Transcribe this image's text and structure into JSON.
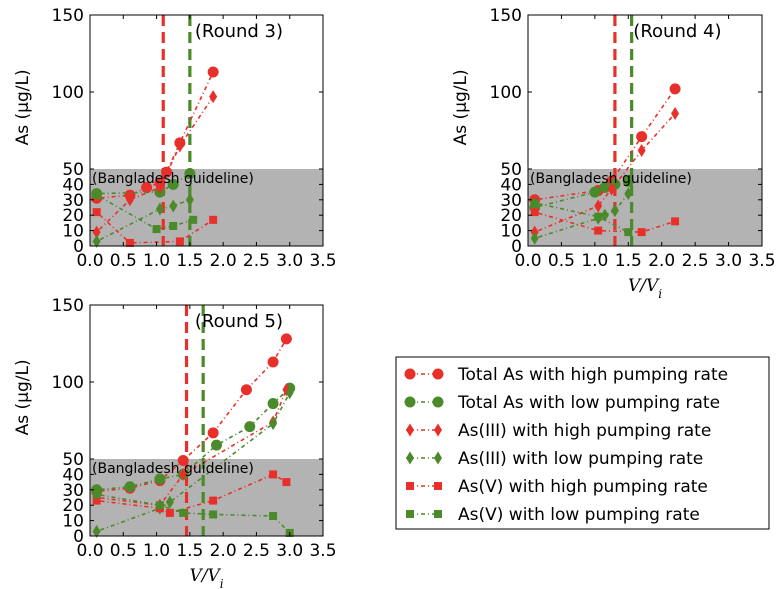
{
  "colors": {
    "red": "#e8302b",
    "green": "#4a8a2a",
    "guideline_fill": "#b3b3b3"
  },
  "guideline_label": "(Bangladesh guideline)",
  "ylabel": "As (μg/L)",
  "xlabel": "V/V",
  "xlabel_sub": "i",
  "chart_data": [
    {
      "type": "line",
      "title": "(Round 3)",
      "xlim": [
        0,
        3.5
      ],
      "ylim": [
        0,
        150
      ],
      "xticks": [
        "0.0",
        "0.5",
        "1.0",
        "1.5",
        "2.0",
        "2.5",
        "3.0",
        "3.5"
      ],
      "yticks": [
        "0",
        "10",
        "20",
        "30",
        "40",
        "50",
        "100",
        "150"
      ],
      "guideline": 50,
      "vlines": [
        {
          "x": 1.1,
          "color": "red"
        },
        {
          "x": 1.5,
          "color": "green"
        }
      ],
      "show_ylabel": true,
      "show_xlabel": false,
      "series": [
        {
          "name": "Total As with high pumping rate",
          "marker": "circle",
          "color": "red",
          "x": [
            0.1,
            0.6,
            0.85,
            1.05,
            1.15,
            1.35,
            1.85
          ],
          "y": [
            31,
            33,
            38,
            41,
            48,
            67,
            113
          ]
        },
        {
          "name": "Total As with low pumping rate",
          "marker": "circle",
          "color": "green",
          "x": [
            0.1,
            1.05,
            1.25,
            1.5
          ],
          "y": [
            34,
            35,
            40,
            47
          ]
        },
        {
          "name": "As(III) with high pumping rate",
          "marker": "diamond",
          "color": "red",
          "x": [
            0.1,
            0.6,
            1.05,
            1.35,
            1.85
          ],
          "y": [
            9,
            30,
            38,
            65,
            97
          ]
        },
        {
          "name": "As(III) with low pumping rate",
          "marker": "diamond",
          "color": "green",
          "x": [
            0.1,
            1.05,
            1.25,
            1.5
          ],
          "y": [
            3,
            24,
            26,
            30
          ]
        },
        {
          "name": "As(V) with high pumping rate",
          "marker": "square",
          "color": "red",
          "x": [
            0.1,
            0.6,
            1.35,
            1.85
          ],
          "y": [
            22,
            2,
            3,
            17
          ]
        },
        {
          "name": "As(V) with low pumping rate",
          "marker": "square",
          "color": "green",
          "x": [
            0.1,
            1.0,
            1.25,
            1.55
          ],
          "y": [
            33,
            11,
            13,
            17
          ]
        }
      ]
    },
    {
      "type": "line",
      "title": "(Round 4)",
      "xlim": [
        0,
        3.5
      ],
      "ylim": [
        0,
        150
      ],
      "xticks": [
        "0.0",
        "0.5",
        "1.0",
        "1.5",
        "2.0",
        "2.5",
        "3.0",
        "3.5"
      ],
      "yticks": [
        "0",
        "10",
        "20",
        "30",
        "40",
        "50",
        "100",
        "150"
      ],
      "guideline": 50,
      "vlines": [
        {
          "x": 1.3,
          "color": "red"
        },
        {
          "x": 1.55,
          "color": "green"
        }
      ],
      "show_ylabel": true,
      "show_xlabel": true,
      "series": [
        {
          "name": "Total As with high pumping rate",
          "marker": "circle",
          "color": "red",
          "x": [
            0.1,
            1.05,
            1.25,
            1.7,
            2.2
          ],
          "y": [
            30,
            36,
            42,
            71,
            102
          ]
        },
        {
          "name": "Total As with low pumping rate",
          "marker": "circle",
          "color": "green",
          "x": [
            0.1,
            1.0,
            1.15,
            1.3,
            1.5
          ],
          "y": [
            25,
            35,
            38,
            40,
            42
          ]
        },
        {
          "name": "As(III) with high pumping rate",
          "marker": "diamond",
          "color": "red",
          "x": [
            0.1,
            1.05,
            1.25,
            1.7,
            2.2
          ],
          "y": [
            9,
            26,
            37,
            62,
            86
          ]
        },
        {
          "name": "As(III) with low pumping rate",
          "marker": "diamond",
          "color": "green",
          "x": [
            0.1,
            1.05,
            1.15,
            1.3,
            1.5
          ],
          "y": [
            5,
            18,
            20,
            23,
            34
          ]
        },
        {
          "name": "As(V) with high pumping rate",
          "marker": "square",
          "color": "red",
          "x": [
            0.1,
            1.05,
            1.7,
            2.2
          ],
          "y": [
            22,
            10,
            9,
            16
          ]
        },
        {
          "name": "As(V) with low pumping rate",
          "marker": "square",
          "color": "green",
          "x": [
            0.1,
            1.05,
            1.5
          ],
          "y": [
            28,
            19,
            9
          ]
        }
      ]
    },
    {
      "type": "line",
      "title": "(Round 5)",
      "xlim": [
        0,
        3.5
      ],
      "ylim": [
        0,
        150
      ],
      "xticks": [
        "0.0",
        "0.5",
        "1.0",
        "1.5",
        "2.0",
        "2.5",
        "3.0",
        "3.5"
      ],
      "yticks": [
        "0",
        "10",
        "20",
        "30",
        "40",
        "50",
        "100",
        "150"
      ],
      "guideline": 50,
      "vlines": [
        {
          "x": 1.45,
          "color": "red"
        },
        {
          "x": 1.7,
          "color": "green"
        }
      ],
      "show_ylabel": true,
      "show_xlabel": true,
      "series": [
        {
          "name": "Total As with high pumping rate",
          "marker": "circle",
          "color": "red",
          "x": [
            0.1,
            0.6,
            1.05,
            1.4,
            1.85,
            2.35,
            2.75,
            2.95
          ],
          "y": [
            29,
            31,
            36,
            49,
            67,
            95,
            113,
            128
          ]
        },
        {
          "name": "Total As with low pumping rate",
          "marker": "circle",
          "color": "green",
          "x": [
            0.1,
            0.6,
            1.05,
            1.4,
            1.9,
            2.4,
            2.75,
            3.0
          ],
          "y": [
            30,
            32,
            37,
            40,
            59,
            71,
            86,
            96
          ]
        },
        {
          "name": "As(III) with high pumping rate",
          "marker": "diamond",
          "color": "red",
          "x": [
            0.1,
            1.05,
            1.4,
            2.75,
            2.95
          ],
          "y": [
            25,
            20,
            40,
            74,
            95
          ]
        },
        {
          "name": "As(III) with low pumping rate",
          "marker": "diamond",
          "color": "green",
          "x": [
            0.1,
            1.05,
            1.2,
            2.75,
            3.0
          ],
          "y": [
            3,
            18,
            22,
            73,
            93
          ]
        },
        {
          "name": "As(V) with high pumping rate",
          "marker": "square",
          "color": "red",
          "x": [
            0.1,
            1.05,
            1.2,
            1.85,
            2.75,
            2.95
          ],
          "y": [
            23,
            18,
            15,
            23,
            40,
            35
          ]
        },
        {
          "name": "As(V) with low pumping rate",
          "marker": "square",
          "color": "green",
          "x": [
            0.1,
            1.05,
            1.4,
            1.85,
            2.75,
            3.0
          ],
          "y": [
            27,
            20,
            15,
            14,
            13,
            2
          ]
        }
      ]
    }
  ],
  "legend": [
    {
      "label": "Total As with high pumping rate",
      "marker": "circle",
      "color": "red"
    },
    {
      "label": "Total As with low pumping rate",
      "marker": "circle",
      "color": "green"
    },
    {
      "label": "As(III) with high pumping rate",
      "marker": "diamond",
      "color": "red"
    },
    {
      "label": "As(III) with low pumping rate",
      "marker": "diamond",
      "color": "green"
    },
    {
      "label": "As(V) with high pumping rate",
      "marker": "square",
      "color": "red"
    },
    {
      "label": "As(V) with low pumping rate",
      "marker": "square",
      "color": "green"
    }
  ]
}
